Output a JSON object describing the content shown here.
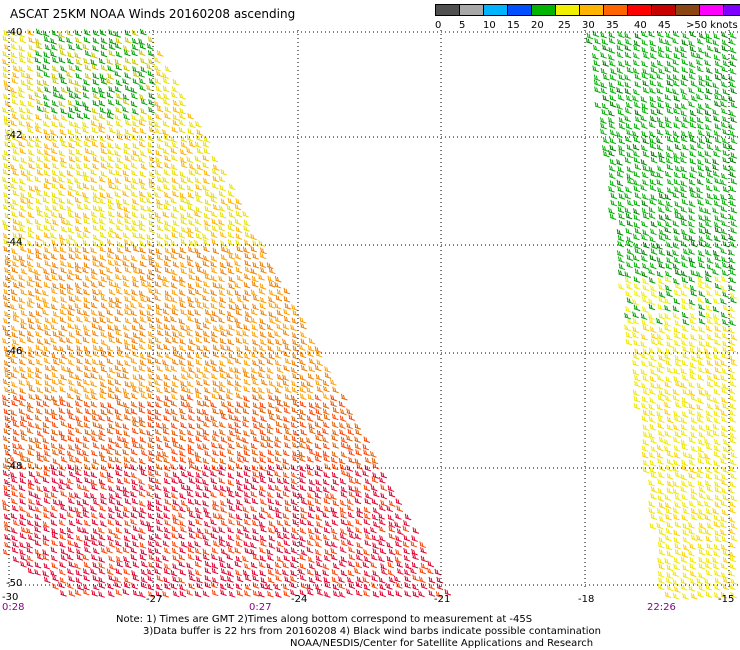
{
  "title": "ASCAT 25KM NOAA Winds 20160208 ascending",
  "scale": {
    "colors": [
      "#505050",
      "#a8a8a8",
      "#00b4ff",
      "#0050ff",
      "#00b400",
      "#f0f000",
      "#ffb400",
      "#ff6400",
      "#ff0000",
      "#c80000",
      "#8b4513",
      "#ff00ff",
      "#8000ff",
      "#400080"
    ],
    "labels": [
      "0",
      "5",
      "10",
      "15",
      "20",
      "25",
      "30",
      "35",
      "40",
      "45",
      ">50 knots"
    ]
  },
  "map": {
    "lat_labels": [
      "-40",
      "-42",
      "-44",
      "-46",
      "-48",
      "-50"
    ],
    "lon_labels": [
      "-30",
      "-27",
      "-24",
      "-21",
      "-18",
      "-15"
    ],
    "time_labels": [
      "0:28",
      "0:27",
      "22:26"
    ]
  },
  "notes": {
    "line1": "Note: 1) Times are GMT 2)Times along bottom correspond to measurement at -45S",
    "line2": "3)Data buffer is 22 hrs from 20160208 4) Black wind barbs indicate possible contamination",
    "line3": "NOAA/NESDIS/Center for Satellite Applications and Research"
  }
}
